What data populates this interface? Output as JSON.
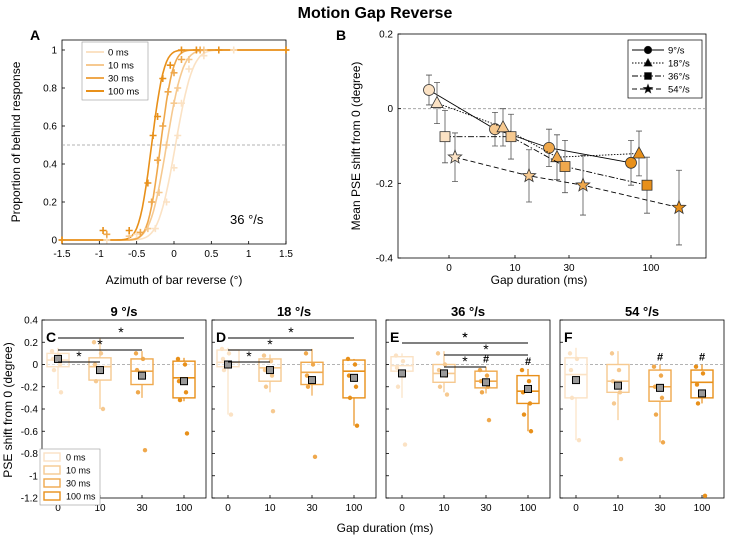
{
  "figure_title": "Motion Gap Reverse",
  "colors": {
    "gap0": "#fbe2c4",
    "gap10": "#f6c990",
    "gap30": "#efa84c",
    "gap100": "#e8901a",
    "axis": "#000000",
    "dash": "#9a9a9a"
  },
  "chart_data": [
    {
      "id": "A",
      "panel_label": "A",
      "type": "scatter",
      "title": "",
      "xlabel": "Azimuth of bar reverse (°)",
      "ylabel": "Proportion of behind response",
      "xlim": [
        -1.5,
        1.5
      ],
      "ylim": [
        0,
        1
      ],
      "xticks": [
        "-1.5",
        "-1",
        "-0.5",
        "0",
        "0.5",
        "1",
        "1.5"
      ],
      "yticks": [
        "0",
        "0.2",
        "0.4",
        "0.6",
        "0.8",
        "1"
      ],
      "reference_line_y": 0.5,
      "annotation": "36 °/s",
      "legend": [
        "0 ms",
        "10 ms",
        "30 ms",
        "100 ms"
      ],
      "series": [
        {
          "name": "0 ms",
          "mu": 0.02,
          "sigma": 0.18,
          "points": [
            [
              -1.5,
              0
            ],
            [
              -0.9,
              0
            ],
            [
              -0.5,
              0.03
            ],
            [
              -0.25,
              0.06
            ],
            [
              -0.1,
              0.2
            ],
            [
              0,
              0.38
            ],
            [
              0.05,
              0.55
            ],
            [
              0.1,
              0.72
            ],
            [
              0.2,
              0.9
            ],
            [
              0.4,
              0.97
            ],
            [
              0.8,
              1
            ],
            [
              1.5,
              1
            ]
          ]
        },
        {
          "name": "10 ms",
          "mu": -0.1,
          "sigma": 0.17,
          "points": [
            [
              -1.5,
              0
            ],
            [
              -0.6,
              0.02
            ],
            [
              -0.35,
              0.06
            ],
            [
              -0.2,
              0.25
            ],
            [
              -0.1,
              0.5
            ],
            [
              0,
              0.72
            ],
            [
              0.05,
              0.8
            ],
            [
              0.2,
              0.95
            ],
            [
              0.4,
              1
            ],
            [
              1.5,
              1
            ]
          ]
        },
        {
          "name": "30 ms",
          "mu": -0.18,
          "sigma": 0.13,
          "points": [
            [
              -1.5,
              0
            ],
            [
              -0.9,
              0.03
            ],
            [
              -0.45,
              0.04
            ],
            [
              -0.3,
              0.2
            ],
            [
              -0.22,
              0.42
            ],
            [
              -0.15,
              0.6
            ],
            [
              -0.08,
              0.78
            ],
            [
              0,
              0.88
            ],
            [
              0.1,
              0.95
            ],
            [
              0.35,
              1
            ],
            [
              1.5,
              1
            ]
          ]
        },
        {
          "name": "100 ms",
          "mu": -0.3,
          "sigma": 0.13,
          "points": [
            [
              -1.5,
              0
            ],
            [
              -0.95,
              0.05
            ],
            [
              -0.6,
              0.05
            ],
            [
              -0.35,
              0.3
            ],
            [
              -0.28,
              0.55
            ],
            [
              -0.22,
              0.65
            ],
            [
              -0.15,
              0.85
            ],
            [
              -0.05,
              0.92
            ],
            [
              0.1,
              1
            ],
            [
              0.3,
              1
            ],
            [
              0.6,
              1
            ],
            [
              1.5,
              1
            ]
          ]
        }
      ]
    },
    {
      "id": "B",
      "panel_label": "B",
      "type": "line",
      "title": "",
      "xlabel": "Gap duration (ms)",
      "ylabel": "Mean PSE shift from 0 (degree)",
      "xticks": [
        "0",
        "10",
        "30",
        "100"
      ],
      "yticks": [
        "-0.4",
        "-0.2",
        "0",
        "0.2"
      ],
      "ylim": [
        -0.4,
        0.2
      ],
      "reference_line_y": 0,
      "legend": [
        "9°/s",
        "18°/s",
        "36°/s",
        "54°/s"
      ],
      "categories": [
        "0",
        "10",
        "30",
        "100"
      ],
      "series": [
        {
          "name": "9°/s",
          "marker": "circle",
          "dash": "solid",
          "values": [
            0.05,
            -0.055,
            -0.105,
            -0.145
          ],
          "errors": [
            0.04,
            0.045,
            0.05,
            0.06
          ]
        },
        {
          "name": "18°/s",
          "marker": "triangle",
          "dash": "dotted",
          "values": [
            0.015,
            -0.05,
            -0.13,
            -0.12
          ],
          "errors": [
            0.055,
            0.05,
            0.06,
            0.06
          ]
        },
        {
          "name": "36°/s",
          "marker": "square",
          "dash": "dashdot",
          "values": [
            -0.075,
            -0.075,
            -0.155,
            -0.205
          ],
          "errors": [
            0.07,
            0.06,
            0.07,
            0.075
          ]
        },
        {
          "name": "54°/s",
          "marker": "star",
          "dash": "dashed",
          "values": [
            -0.13,
            -0.18,
            -0.205,
            -0.265
          ],
          "errors": [
            0.065,
            0.07,
            0.08,
            0.1
          ]
        }
      ]
    },
    {
      "id": "C",
      "panel_label": "C",
      "type": "box",
      "title": "9 °/s",
      "xlabel": "",
      "ylabel": "PSE shift from 0 (degree)",
      "ylim": [
        -1.2,
        0.4
      ],
      "yticks": [
        "-1.2",
        "-1",
        "-0.8",
        "-0.6",
        "-0.4",
        "-0.2",
        "0",
        "0.2",
        "0.4"
      ],
      "categories": [
        "0",
        "10",
        "30",
        "100"
      ],
      "legend": [
        "0 ms",
        "10 ms",
        "30 ms",
        "100 ms"
      ],
      "boxes": [
        {
          "category": "0",
          "q1": -0.02,
          "median": 0.04,
          "q3": 0.1,
          "whisker_low": -0.22,
          "whisker_high": 0.15,
          "mean": 0.05,
          "points": [
            0.12,
            0.08,
            0.05,
            0.0,
            -0.05,
            -0.25
          ]
        },
        {
          "category": "10",
          "q1": -0.14,
          "median": -0.02,
          "q3": 0.06,
          "whisker_low": -0.4,
          "whisker_high": 0.24,
          "mean": -0.05,
          "points": [
            0.2,
            0.1,
            0.0,
            -0.05,
            -0.15,
            -0.4
          ]
        },
        {
          "category": "30",
          "q1": -0.18,
          "median": -0.06,
          "q3": 0.05,
          "whisker_low": -0.3,
          "whisker_high": 0.12,
          "mean": -0.1,
          "points": [
            0.1,
            0.05,
            -0.05,
            -0.1,
            -0.25,
            -0.77
          ]
        },
        {
          "category": "100",
          "q1": -0.3,
          "median": -0.12,
          "q3": 0.03,
          "whisker_low": -0.33,
          "whisker_high": 0.06,
          "mean": -0.15,
          "points": [
            0.05,
            0.0,
            -0.15,
            -0.25,
            -0.32,
            -0.62
          ]
        }
      ],
      "significance": [
        {
          "from": "0",
          "to": "10",
          "label": "*"
        },
        {
          "from": "0",
          "to": "30",
          "label": "*"
        },
        {
          "from": "0",
          "to": "100",
          "label": "*"
        }
      ],
      "hash_marks": []
    },
    {
      "id": "D",
      "panel_label": "D",
      "type": "box",
      "title": "18 °/s",
      "xlabel": "",
      "ylabel": "",
      "ylim": [
        -1.2,
        0.4
      ],
      "categories": [
        "0",
        "10",
        "30",
        "100"
      ],
      "boxes": [
        {
          "category": "0",
          "q1": -0.02,
          "median": 0.02,
          "q3": 0.13,
          "whisker_low": -0.45,
          "whisker_high": 0.15,
          "mean": 0.0,
          "points": [
            0.14,
            0.1,
            0.05,
            0.0,
            -0.05,
            -0.45
          ]
        },
        {
          "category": "10",
          "q1": -0.15,
          "median": -0.03,
          "q3": 0.05,
          "whisker_low": -0.25,
          "whisker_high": 0.09,
          "mean": -0.05,
          "points": [
            0.08,
            0.03,
            -0.05,
            -0.1,
            -0.2,
            -0.42
          ]
        },
        {
          "category": "30",
          "q1": -0.18,
          "median": -0.07,
          "q3": 0.02,
          "whisker_low": -0.28,
          "whisker_high": 0.14,
          "mean": -0.14,
          "points": [
            0.1,
            0.0,
            -0.1,
            -0.15,
            -0.2,
            -0.83
          ]
        },
        {
          "category": "100",
          "q1": -0.3,
          "median": -0.06,
          "q3": 0.04,
          "whisker_low": -0.55,
          "whisker_high": 0.05,
          "mean": -0.12,
          "points": [
            0.05,
            0.0,
            -0.1,
            -0.2,
            -0.3,
            -0.55
          ]
        }
      ],
      "significance": [
        {
          "from": "0",
          "to": "10",
          "label": "*"
        },
        {
          "from": "0",
          "to": "30",
          "label": "*"
        },
        {
          "from": "0",
          "to": "100",
          "label": "*"
        }
      ],
      "hash_marks": []
    },
    {
      "id": "E",
      "panel_label": "E",
      "type": "box",
      "title": "36 °/s",
      "xlabel": "",
      "ylabel": "",
      "ylim": [
        -1.2,
        0.4
      ],
      "categories": [
        "0",
        "10",
        "30",
        "100"
      ],
      "boxes": [
        {
          "category": "0",
          "q1": -0.06,
          "median": -0.01,
          "q3": 0.07,
          "whisker_low": -0.3,
          "whisker_high": 0.1,
          "mean": -0.08,
          "points": [
            0.08,
            0.03,
            -0.03,
            -0.1,
            -0.2,
            -0.72
          ]
        },
        {
          "category": "10",
          "q1": -0.16,
          "median": -0.08,
          "q3": 0.0,
          "whisker_low": -0.25,
          "whisker_high": 0.12,
          "mean": -0.08,
          "points": [
            0.1,
            0.0,
            -0.05,
            -0.1,
            -0.2,
            -0.27
          ]
        },
        {
          "category": "30",
          "q1": -0.21,
          "median": -0.15,
          "q3": -0.06,
          "whisker_low": -0.26,
          "whisker_high": -0.02,
          "mean": -0.16,
          "points": [
            -0.05,
            -0.1,
            -0.15,
            -0.2,
            -0.25,
            -0.5
          ]
        },
        {
          "category": "100",
          "q1": -0.35,
          "median": -0.24,
          "q3": -0.1,
          "whisker_low": -0.6,
          "whisker_high": -0.04,
          "mean": -0.22,
          "points": [
            -0.05,
            -0.15,
            -0.25,
            -0.35,
            -0.45,
            -0.6
          ]
        }
      ],
      "significance": [
        {
          "from": "10",
          "to": "30",
          "label": "*"
        },
        {
          "from": "0",
          "to": "100",
          "label": "*"
        },
        {
          "from": "10",
          "to": "100",
          "label": "*"
        },
        {
          "from": "0",
          "to": "100",
          "label": "*"
        }
      ],
      "hash_marks": [
        {
          "category": "30",
          "label": "#"
        },
        {
          "category": "100",
          "label": "#"
        }
      ]
    },
    {
      "id": "F",
      "panel_label": "F",
      "type": "box",
      "title": "54 °/s",
      "xlabel": "",
      "ylabel": "",
      "ylim": [
        -1.2,
        0.4
      ],
      "categories": [
        "0",
        "10",
        "30",
        "100"
      ],
      "boxes": [
        {
          "category": "0",
          "q1": -0.3,
          "median": -0.09,
          "q3": 0.06,
          "whisker_low": -0.68,
          "whisker_high": 0.15,
          "mean": -0.14,
          "points": [
            0.1,
            0.05,
            -0.05,
            -0.15,
            -0.3,
            -0.68
          ]
        },
        {
          "category": "10",
          "q1": -0.25,
          "median": -0.15,
          "q3": 0.0,
          "whisker_low": -0.5,
          "whisker_high": 0.12,
          "mean": -0.19,
          "points": [
            0.1,
            -0.05,
            -0.15,
            -0.25,
            -0.35,
            -0.85
          ]
        },
        {
          "category": "30",
          "q1": -0.33,
          "median": -0.2,
          "q3": -0.05,
          "whisker_low": -0.7,
          "whisker_high": 0.0,
          "mean": -0.21,
          "points": [
            -0.02,
            -0.1,
            -0.2,
            -0.3,
            -0.45,
            -0.7
          ]
        },
        {
          "category": "100",
          "q1": -0.3,
          "median": -0.16,
          "q3": -0.05,
          "whisker_low": -0.35,
          "whisker_high": 0.0,
          "mean": -0.26,
          "points": [
            -0.02,
            -0.08,
            -0.18,
            -0.28,
            -0.35,
            -1.18
          ]
        }
      ],
      "significance": [],
      "hash_marks": [
        {
          "category": "30",
          "label": "#"
        },
        {
          "category": "100",
          "label": "#"
        }
      ]
    }
  ],
  "shared_xlabel_bottom": "Gap duration (ms)"
}
